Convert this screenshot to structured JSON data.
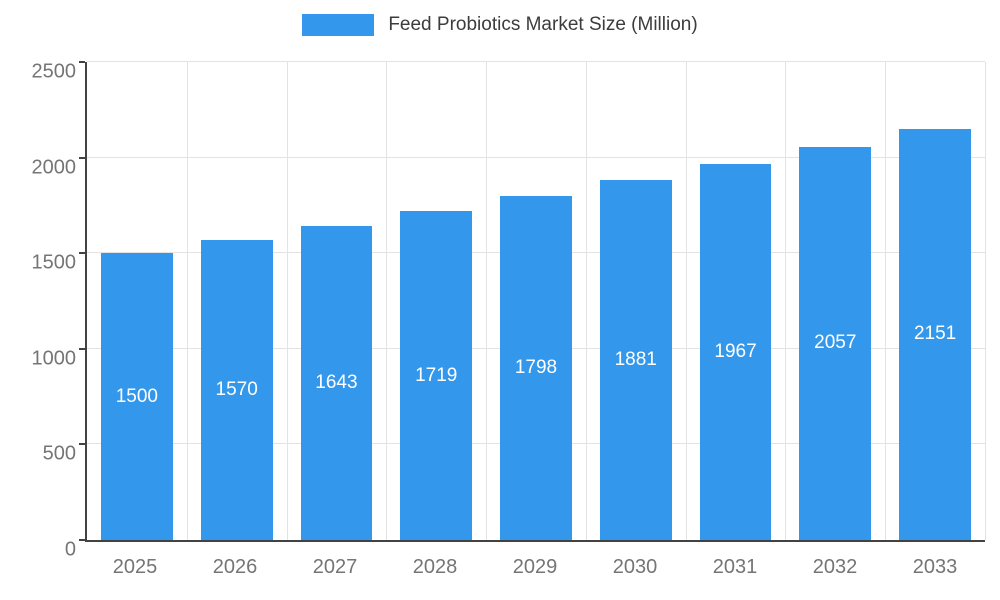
{
  "legend": {
    "label": "Feed Probiotics Market Size (Million)"
  },
  "colors": {
    "bar": "#3398ec",
    "axis": "#424242",
    "grid": "#e3e3e3",
    "tick_text": "#757575",
    "value_text": "#ffffff"
  },
  "chart_data": {
    "type": "bar",
    "title": "Feed Probiotics Market Size (Million)",
    "categories": [
      "2025",
      "2026",
      "2027",
      "2028",
      "2029",
      "2030",
      "2031",
      "2032",
      "2033"
    ],
    "values": [
      1500,
      1570,
      1643,
      1719,
      1798,
      1881,
      1967,
      2057,
      2151
    ],
    "xlabel": "",
    "ylabel": "",
    "ylim": [
      0,
      2500
    ],
    "y_ticks": [
      0,
      500,
      1000,
      1500,
      2000,
      2500
    ],
    "grid": true,
    "legend_position": "top",
    "value_labels": "inside-center"
  }
}
